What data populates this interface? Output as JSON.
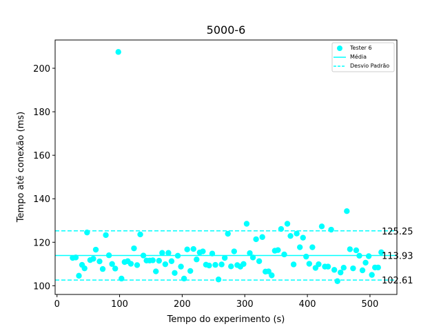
{
  "chart_data": {
    "type": "scatter",
    "title": "5000-6",
    "xlabel": "Tempo do experimento (s)",
    "ylabel": "Tempo até conexão (ms)",
    "xlim": [
      -3,
      543
    ],
    "ylim": [
      96,
      213
    ],
    "xticks": [
      0,
      100,
      200,
      300,
      400,
      500
    ],
    "yticks": [
      100,
      120,
      140,
      160,
      180,
      200
    ],
    "grid": false,
    "legend_position": "top-right",
    "color": "#00ffff",
    "series": [
      {
        "name": "Tester 6",
        "points": [
          [
            25,
            112.8
          ],
          [
            30,
            113.0
          ],
          [
            35,
            104.6
          ],
          [
            40,
            109.6
          ],
          [
            44,
            108.0
          ],
          [
            48,
            124.5
          ],
          [
            53,
            111.8
          ],
          [
            58,
            112.4
          ],
          [
            62,
            116.6
          ],
          [
            68,
            111.2
          ],
          [
            73,
            107.7
          ],
          [
            78,
            123.3
          ],
          [
            83,
            114.0
          ],
          [
            88,
            110.0
          ],
          [
            93,
            107.9
          ],
          [
            98,
            207.5
          ],
          [
            103,
            103.3
          ],
          [
            108,
            110.9
          ],
          [
            113,
            111.3
          ],
          [
            118,
            110.1
          ],
          [
            123,
            117.2
          ],
          [
            128,
            109.5
          ],
          [
            133,
            123.6
          ],
          [
            138,
            113.9
          ],
          [
            143,
            111.6
          ],
          [
            148,
            111.6
          ],
          [
            153,
            111.7
          ],
          [
            158,
            106.6
          ],
          [
            163,
            111.5
          ],
          [
            168,
            115.1
          ],
          [
            173,
            109.9
          ],
          [
            178,
            115.1
          ],
          [
            183,
            111.3
          ],
          [
            188,
            105.9
          ],
          [
            193,
            113.8
          ],
          [
            198,
            108.8
          ],
          [
            203,
            103.3
          ],
          [
            208,
            116.7
          ],
          [
            213,
            106.8
          ],
          [
            218,
            116.9
          ],
          [
            223,
            112.1
          ],
          [
            228,
            115.3
          ],
          [
            233,
            115.8
          ],
          [
            238,
            109.7
          ],
          [
            243,
            109.3
          ],
          [
            248,
            114.8
          ],
          [
            253,
            109.6
          ],
          [
            258,
            102.9
          ],
          [
            263,
            109.8
          ],
          [
            268,
            112.8
          ],
          [
            273,
            123.9
          ],
          [
            278,
            108.9
          ],
          [
            283,
            115.8
          ],
          [
            288,
            109.5
          ],
          [
            293,
            108.8
          ],
          [
            298,
            110.0
          ],
          [
            303,
            128.5
          ],
          [
            308,
            115.0
          ],
          [
            313,
            113.0
          ],
          [
            318,
            121.4
          ],
          [
            323,
            111.3
          ],
          [
            328,
            122.4
          ],
          [
            333,
            106.5
          ],
          [
            338,
            106.6
          ],
          [
            343,
            104.8
          ],
          [
            348,
            116.1
          ],
          [
            353,
            116.4
          ],
          [
            358,
            126.1
          ],
          [
            363,
            114.4
          ],
          [
            368,
            128.5
          ],
          [
            373,
            122.9
          ],
          [
            378,
            109.8
          ],
          [
            383,
            124.0
          ],
          [
            388,
            117.7
          ],
          [
            393,
            122.1
          ],
          [
            398,
            113.4
          ],
          [
            403,
            110.1
          ],
          [
            408,
            117.7
          ],
          [
            413,
            108.2
          ],
          [
            418,
            109.9
          ],
          [
            423,
            127.3
          ],
          [
            428,
            108.8
          ],
          [
            433,
            108.8
          ],
          [
            438,
            125.8
          ],
          [
            443,
            107.3
          ],
          [
            448,
            102.1
          ],
          [
            453,
            106.1
          ],
          [
            458,
            108.3
          ],
          [
            463,
            134.3
          ],
          [
            468,
            116.8
          ],
          [
            473,
            108.0
          ],
          [
            478,
            116.3
          ],
          [
            483,
            113.8
          ],
          [
            488,
            107.1
          ],
          [
            493,
            110.6
          ],
          [
            498,
            113.6
          ],
          [
            503,
            105.0
          ],
          [
            508,
            108.4
          ],
          [
            513,
            108.4
          ],
          [
            518,
            115.4
          ]
        ]
      }
    ],
    "reference_lines": [
      {
        "name": "Média",
        "y": 113.93,
        "style": "solid",
        "label": "113.93"
      },
      {
        "name": "Desvio Padrão",
        "y": 125.25,
        "style": "dashed",
        "label": "125.25"
      },
      {
        "name": "Desvio Padrão",
        "y": 102.61,
        "style": "dashed",
        "label": "102.61"
      }
    ]
  }
}
